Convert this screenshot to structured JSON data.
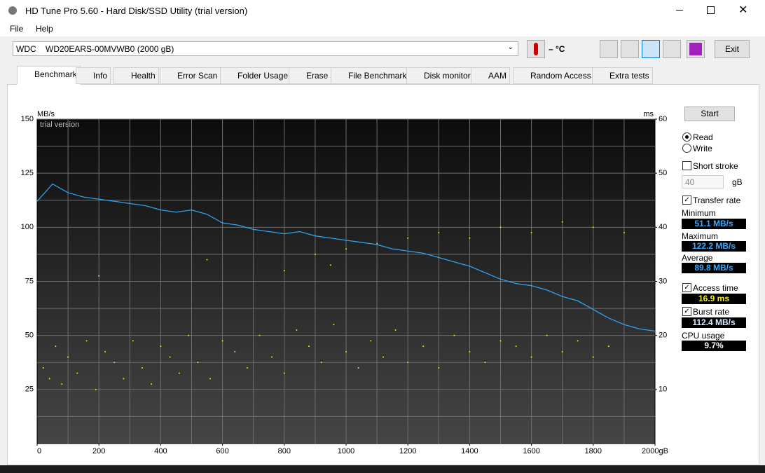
{
  "window": {
    "title": "HD Tune Pro 5.60 - Hard Disk/SSD Utility (trial version)"
  },
  "menu": [
    "File",
    "Help"
  ],
  "toolbar": {
    "drive": "WDC    WD20EARS-00MVWB0 (2000 gB)",
    "temperature": "– °C",
    "exit": "Exit"
  },
  "tabs": [
    "Benchmark",
    "Info",
    "Health",
    "Error Scan",
    "Folder Usage",
    "Erase",
    "File Benchmark",
    "Disk monitor",
    "AAM",
    "Random Access",
    "Extra tests"
  ],
  "sidebar": {
    "start": "Start",
    "read": "Read",
    "write": "Write",
    "short_stroke": "Short stroke",
    "stroke_size": "40",
    "stroke_unit": "gB",
    "transfer_rate": "Transfer rate",
    "minimum_label": "Minimum",
    "minimum": "51.1 MB/s",
    "maximum_label": "Maximum",
    "maximum": "122.2 MB/s",
    "average_label": "Average",
    "average": "89.8 MB/s",
    "access_time_label": "Access time",
    "access_time": "16.9 ms",
    "burst_rate_label": "Burst rate",
    "burst_rate": "112.4 MB/s",
    "cpu_label": "CPU usage",
    "cpu": "9.7%"
  },
  "chart_data": {
    "type": "line",
    "watermark": "trial version",
    "y_label": "MB/s",
    "y2_label": "ms",
    "xlim": [
      0,
      2000
    ],
    "xticks": [
      0,
      200,
      400,
      600,
      800,
      1000,
      1200,
      1400,
      1600,
      1800,
      {
        "value": 2000,
        "label": "2000gB"
      }
    ],
    "xgrid": [
      100,
      200,
      300,
      400,
      500,
      600,
      700,
      800,
      900,
      1000,
      1100,
      1200,
      1300,
      1400,
      1500,
      1600,
      1700,
      1800,
      1900
    ],
    "ylim": [
      0,
      150
    ],
    "yticks": [
      25,
      50,
      75,
      100,
      125,
      150
    ],
    "ygrid": [
      12.5,
      37.5,
      62.5,
      87.5,
      112.5,
      137.5
    ],
    "y2lim": [
      0,
      60
    ],
    "y2ticks": [
      10,
      20,
      30,
      40,
      50,
      60
    ],
    "grid": true,
    "series": [
      {
        "type": "line",
        "color": "#2ea3ec",
        "x": [
          0,
          50,
          100,
          150,
          200,
          250,
          300,
          350,
          400,
          450,
          500,
          550,
          600,
          650,
          700,
          750,
          800,
          850,
          900,
          950,
          1000,
          1050,
          1100,
          1150,
          1200,
          1250,
          1300,
          1350,
          1400,
          1450,
          1500,
          1550,
          1600,
          1650,
          1700,
          1750,
          1800,
          1850,
          1900,
          1950,
          2000
        ],
        "values": [
          112,
          120,
          116,
          114,
          113,
          112,
          111,
          110,
          108,
          107,
          108,
          106,
          102,
          101,
          99,
          98,
          97,
          98,
          96,
          95,
          94,
          93,
          92,
          90,
          89,
          88,
          86,
          84,
          82,
          79,
          76,
          74,
          73,
          71,
          68,
          66,
          62,
          58,
          55,
          53,
          52
        ]
      },
      {
        "type": "scatter",
        "axis": "y2",
        "color": "#e6e619",
        "x": [
          20,
          40,
          60,
          80,
          100,
          130,
          160,
          190,
          220,
          250,
          280,
          310,
          340,
          370,
          400,
          430,
          460,
          490,
          520,
          560,
          600,
          640,
          680,
          720,
          760,
          800,
          840,
          880,
          920,
          960,
          1000,
          1040,
          1080,
          1120,
          1160,
          1200,
          1250,
          1300,
          1350,
          1400,
          1450,
          1500,
          1550,
          1600,
          1650,
          1700,
          1750,
          1800,
          1850,
          200,
          550,
          800,
          900,
          950,
          1000,
          1100,
          1200,
          1300,
          1400,
          1500,
          1600,
          1700,
          1800,
          1900
        ],
        "values": [
          14,
          12,
          18,
          11,
          16,
          13,
          19,
          10,
          17,
          15,
          12,
          19,
          14,
          11,
          18,
          16,
          13,
          20,
          15,
          12,
          19,
          17,
          14,
          20,
          16,
          13,
          21,
          18,
          15,
          22,
          17,
          14,
          19,
          16,
          21,
          15,
          18,
          14,
          20,
          17,
          15,
          19,
          18,
          16,
          20,
          17,
          19,
          16,
          18,
          31,
          34,
          32,
          35,
          33,
          36,
          37,
          38,
          39,
          38,
          40,
          39,
          41,
          40,
          39
        ]
      }
    ]
  }
}
